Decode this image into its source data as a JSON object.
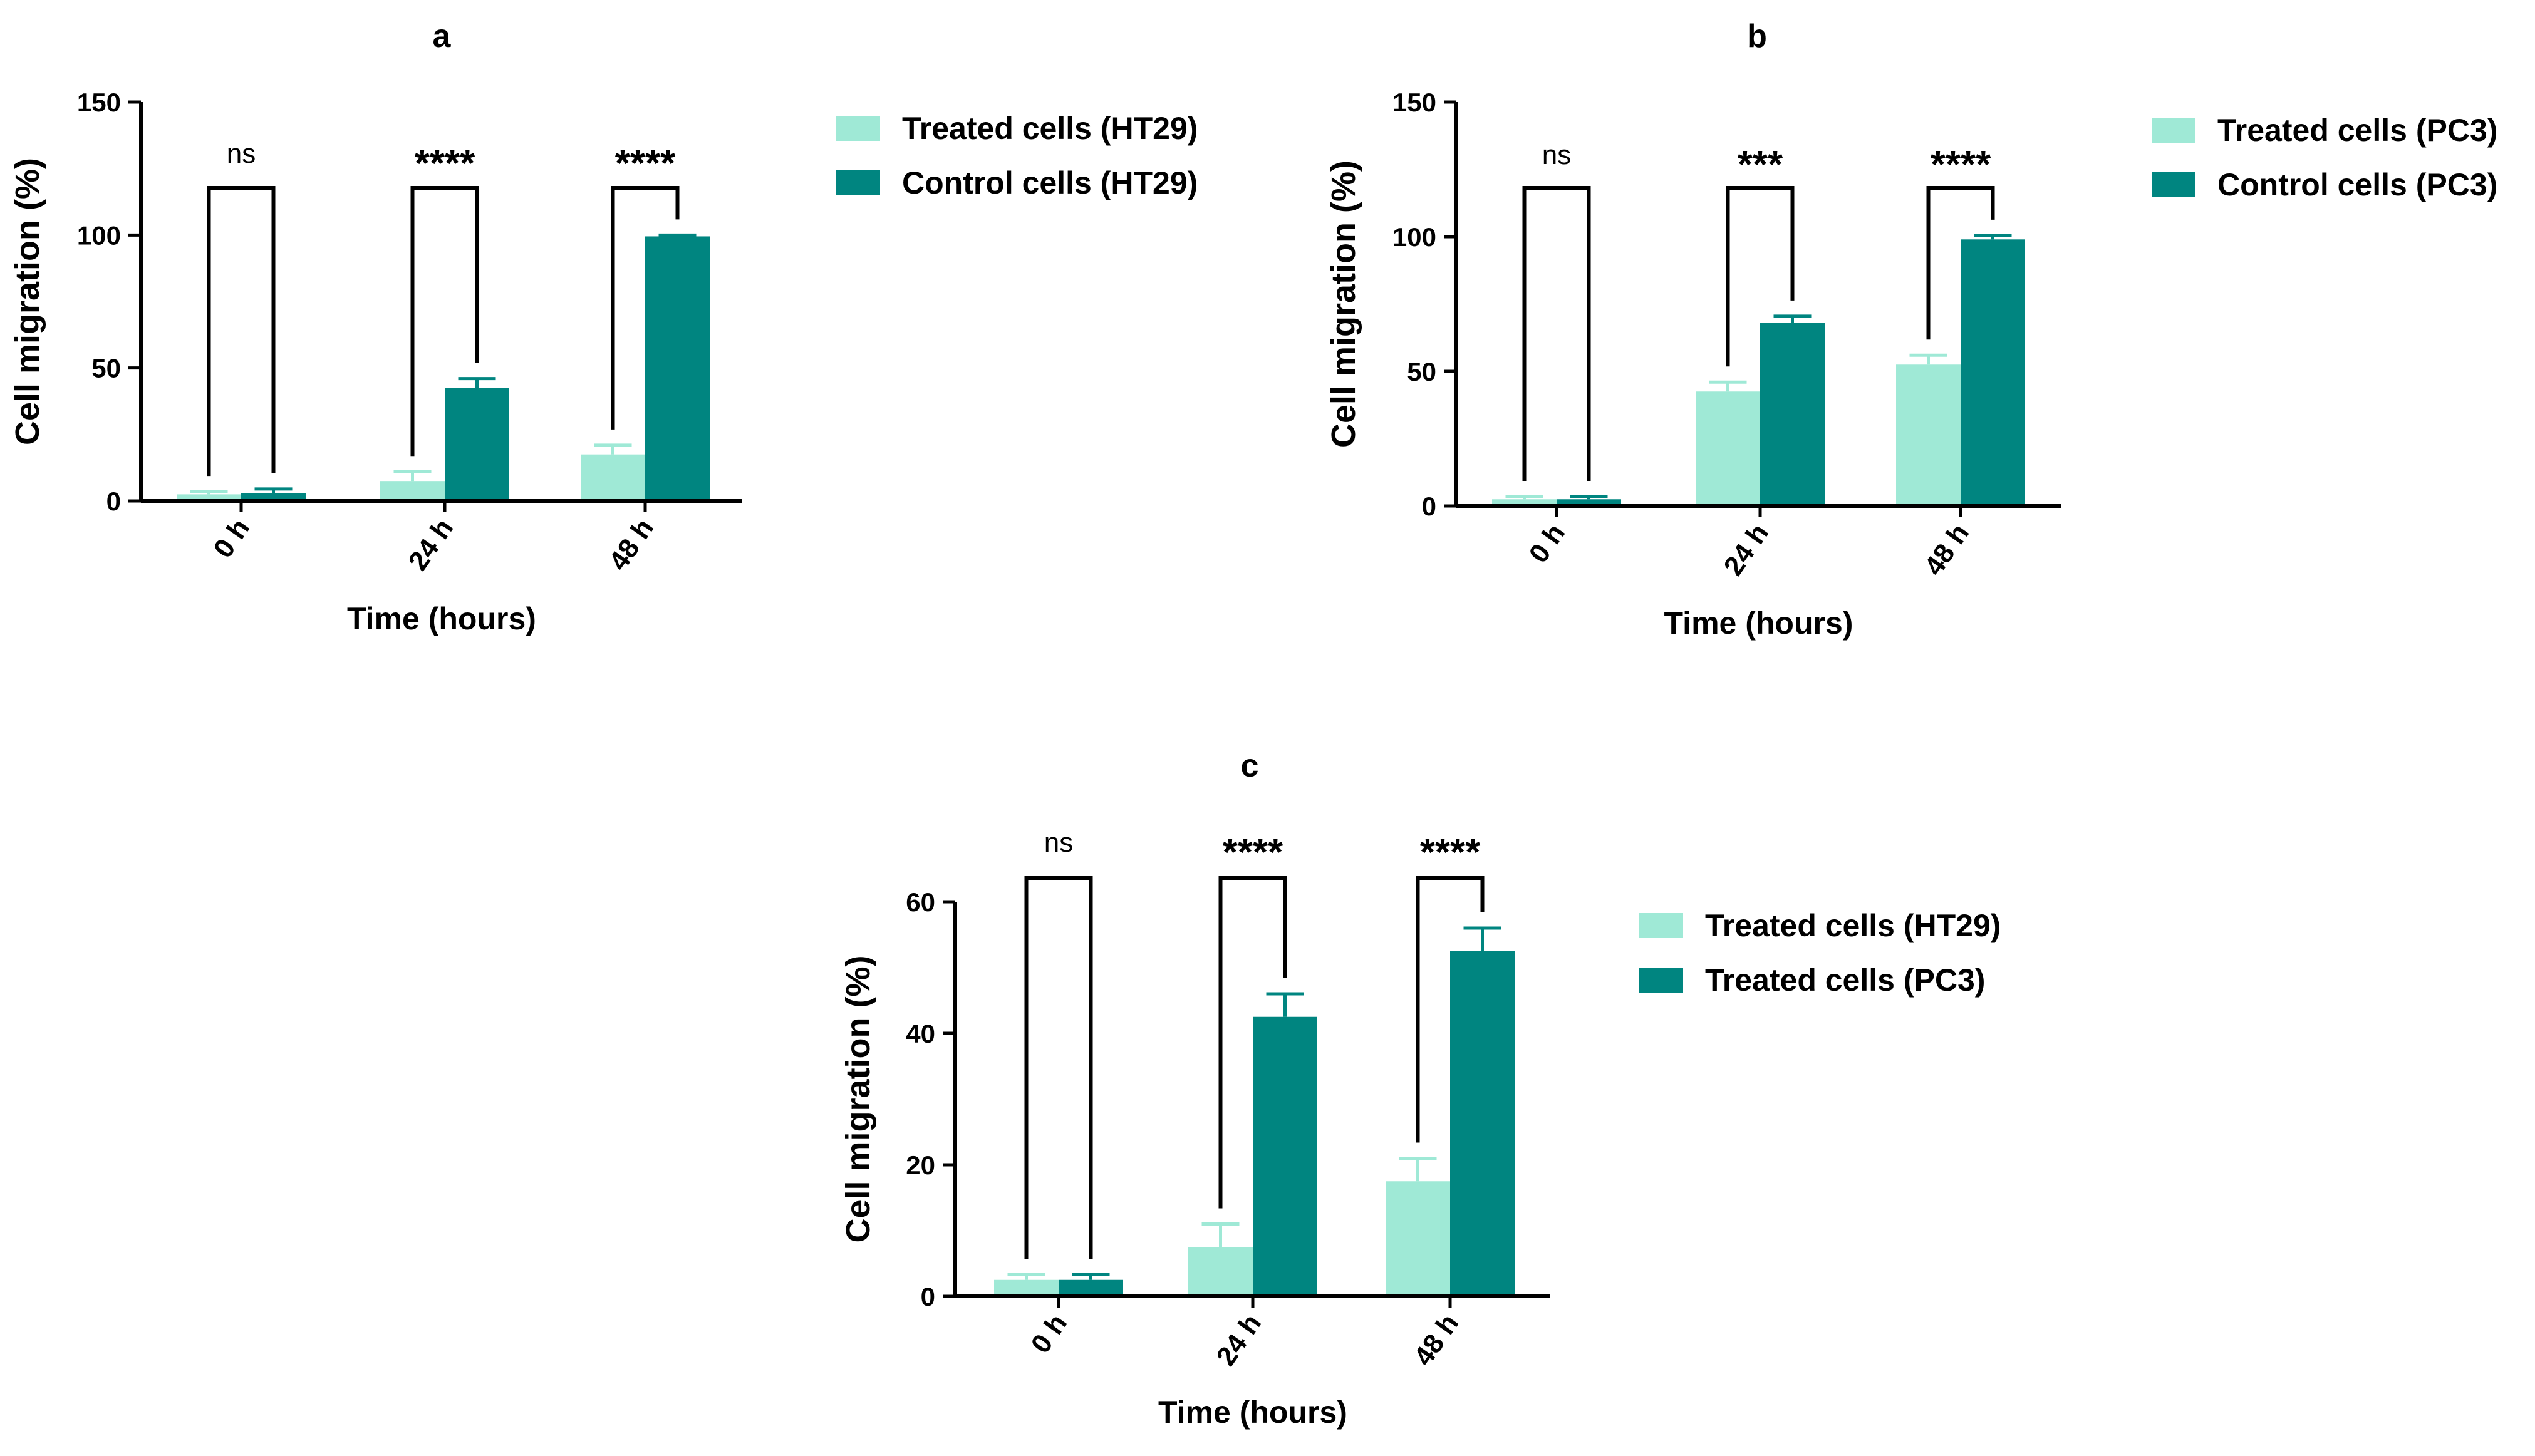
{
  "colors": {
    "treated_light": "#9fe9d6",
    "control_dark": "#008580",
    "axis": "#000000",
    "bracket": "#000000"
  },
  "chart_data": [
    {
      "panel_label": "a",
      "type": "bar",
      "categories": [
        "0 h",
        "24 h",
        "48 h"
      ],
      "series": [
        {
          "name": "Treated cells (HT29)",
          "color": "treated_light",
          "values": [
            2.5,
            7.5,
            17.5
          ],
          "errors": [
            1.0,
            3.5,
            3.5
          ]
        },
        {
          "name": "Control cells (HT29)",
          "color": "control_dark",
          "values": [
            3.0,
            42.5,
            99.5
          ],
          "errors": [
            1.5,
            3.5,
            0.5
          ]
        }
      ],
      "significance": [
        "ns",
        "****",
        "****"
      ],
      "xlabel": "Time (hours)",
      "ylabel": "Cell migration (%)",
      "ylim": [
        0,
        150
      ],
      "yticks": [
        0,
        50,
        100,
        150
      ],
      "legend": "right"
    },
    {
      "panel_label": "b",
      "type": "bar",
      "categories": [
        "0 h",
        "24 h",
        "48 h"
      ],
      "series": [
        {
          "name": "Treated cells (PC3)",
          "color": "treated_light",
          "values": [
            2.5,
            42.5,
            52.5
          ],
          "errors": [
            1.0,
            3.5,
            3.5
          ]
        },
        {
          "name": "Control cells (PC3)",
          "color": "control_dark",
          "values": [
            2.5,
            68.0,
            99.0
          ],
          "errors": [
            1.0,
            2.5,
            1.5
          ]
        }
      ],
      "significance": [
        "ns",
        "***",
        "****"
      ],
      "xlabel": "Time (hours)",
      "ylabel": "Cell migration (%)",
      "ylim": [
        0,
        150
      ],
      "yticks": [
        0,
        50,
        100,
        150
      ],
      "legend": "right"
    },
    {
      "panel_label": "c",
      "type": "bar",
      "categories": [
        "0 h",
        "24 h",
        "48 h"
      ],
      "series": [
        {
          "name": "Treated cells (HT29)",
          "color": "treated_light",
          "values": [
            2.5,
            7.5,
            17.5
          ],
          "errors": [
            0.8,
            3.5,
            3.5
          ]
        },
        {
          "name": "Treated cells (PC3)",
          "color": "control_dark",
          "values": [
            2.5,
            42.5,
            52.5
          ],
          "errors": [
            0.8,
            3.5,
            3.5
          ]
        }
      ],
      "significance": [
        "ns",
        "****",
        "****"
      ],
      "xlabel": "Time (hours)",
      "ylabel": "Cell migration (%)",
      "ylim": [
        0,
        60
      ],
      "yticks": [
        0,
        20,
        40,
        60
      ],
      "legend": "right"
    }
  ]
}
